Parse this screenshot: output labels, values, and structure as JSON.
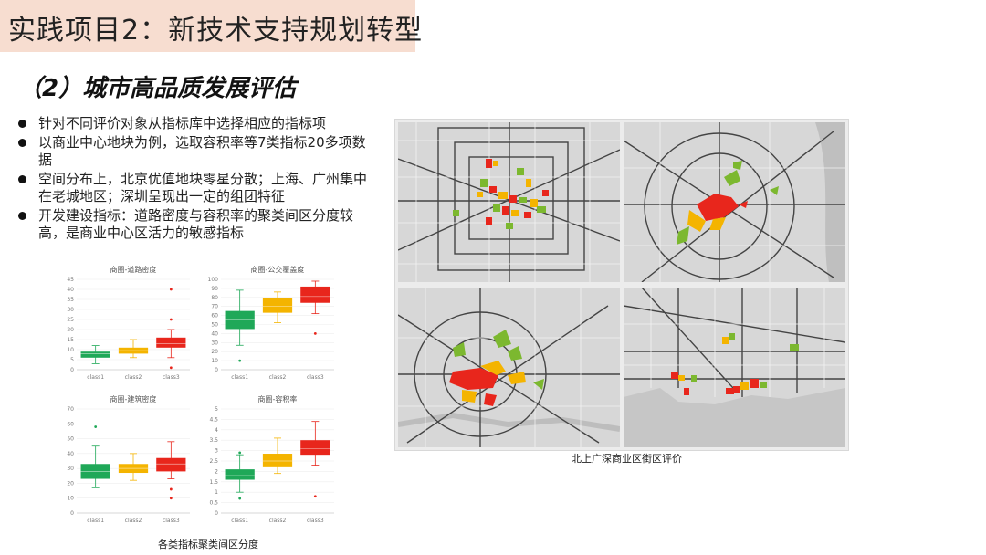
{
  "header": {
    "title": "实践项目2：新技术支持规划转型"
  },
  "section": {
    "subtitle": "（2）城市高品质发展评估"
  },
  "bullets": [
    {
      "text": "针对不同评价对象从指标库中选择相应的指标项"
    },
    {
      "text": "以商业中心地块为例，选取容积率等7类指标20多项数据"
    },
    {
      "text": "空间分布上，北京优值地块零星分散；上海、广州集中在老城地区；深圳呈现出一定的组团特征"
    },
    {
      "text": "开发建设指标：道路密度与容积率的聚类间区分度较高，是商业中心区活力的敏感指标"
    }
  ],
  "colors": {
    "class1": "#1fa858",
    "class2": "#f4b400",
    "class3": "#e8261c",
    "title_bg": "#f7ddd0"
  },
  "chart_data": [
    {
      "type": "boxplot",
      "title": "商圈-道路密度",
      "categories": [
        "class1",
        "class2",
        "class3"
      ],
      "ylim": [
        0,
        45
      ],
      "yticks": [
        0,
        5,
        10,
        15,
        20,
        25,
        30,
        35,
        40,
        45
      ],
      "boxes": [
        {
          "min": 3,
          "q1": 6,
          "median": 8,
          "q3": 9,
          "max": 12,
          "outliers": []
        },
        {
          "min": 6,
          "q1": 8,
          "median": 9.5,
          "q3": 11,
          "max": 15,
          "outliers": []
        },
        {
          "min": 6,
          "q1": 11,
          "median": 13,
          "q3": 16,
          "max": 20,
          "outliers": [
            1,
            25,
            40
          ]
        }
      ]
    },
    {
      "type": "boxplot",
      "title": "商圈-公交覆盖度",
      "categories": [
        "class1",
        "class2",
        "class3"
      ],
      "ylim": [
        0,
        100
      ],
      "yticks": [
        0,
        10,
        20,
        30,
        40,
        50,
        60,
        70,
        80,
        90,
        100
      ],
      "boxes": [
        {
          "min": 27,
          "q1": 45,
          "median": 55,
          "q3": 65,
          "max": 88,
          "outliers": [
            10
          ]
        },
        {
          "min": 52,
          "q1": 63,
          "median": 70,
          "q3": 79,
          "max": 86,
          "outliers": []
        },
        {
          "min": 62,
          "q1": 74,
          "median": 81,
          "q3": 92,
          "max": 98,
          "outliers": [
            40
          ]
        }
      ]
    },
    {
      "type": "boxplot",
      "title": "商圈-建筑密度",
      "categories": [
        "class1",
        "class2",
        "class3"
      ],
      "ylim": [
        0,
        70
      ],
      "yticks": [
        0,
        10,
        20,
        30,
        40,
        50,
        60,
        70
      ],
      "boxes": [
        {
          "min": 17,
          "q1": 23,
          "median": 28,
          "q3": 33,
          "max": 45,
          "outliers": [
            58
          ]
        },
        {
          "min": 22,
          "q1": 27,
          "median": 30,
          "q3": 33,
          "max": 40,
          "outliers": []
        },
        {
          "min": 23,
          "q1": 28,
          "median": 33,
          "q3": 37,
          "max": 48,
          "outliers": [
            10,
            16
          ]
        }
      ]
    },
    {
      "type": "boxplot",
      "title": "商圈-容积率",
      "categories": [
        "class1",
        "class2",
        "class3"
      ],
      "ylim": [
        0,
        5
      ],
      "yticks": [
        0,
        0.5,
        1,
        1.5,
        2,
        2.5,
        3,
        3.5,
        4,
        4.5,
        5
      ],
      "boxes": [
        {
          "min": 1.0,
          "q1": 1.6,
          "median": 1.8,
          "q3": 2.1,
          "max": 2.8,
          "outliers": [
            0.7,
            2.9
          ]
        },
        {
          "min": 1.9,
          "q1": 2.2,
          "median": 2.5,
          "q3": 2.85,
          "max": 3.6,
          "outliers": []
        },
        {
          "min": 2.3,
          "q1": 2.8,
          "median": 3.1,
          "q3": 3.5,
          "max": 4.4,
          "outliers": [
            0.8
          ]
        }
      ]
    }
  ],
  "charts_caption": "各类指标聚类间区分度",
  "maps": {
    "caption": "北上广深商业区街区评价",
    "panels": [
      {
        "name": "beijing"
      },
      {
        "name": "shanghai"
      },
      {
        "name": "guangzhou"
      },
      {
        "name": "shenzhen"
      }
    ]
  }
}
